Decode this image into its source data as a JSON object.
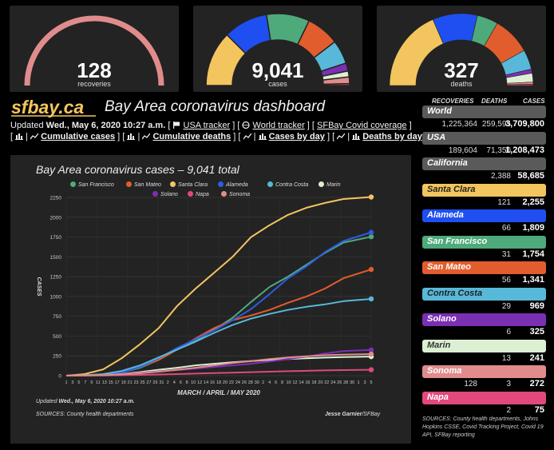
{
  "gauges": [
    {
      "value": "128",
      "label": "recoveries"
    },
    {
      "value": "9,041",
      "label": "cases"
    },
    {
      "value": "327",
      "label": "deaths"
    }
  ],
  "header": {
    "logo_text": "sfbay.ca",
    "title": "Bay Area coronavirus dashboard",
    "updated_prefix": "Updated",
    "updated_date": "Wed., May 6, 2020 10:27 a.m.",
    "links": {
      "usa": "USA tracker",
      "world": "World tracker",
      "sfbay": "SFBay Covid coverage",
      "cumulative_cases": "Cumulative cases",
      "cumulative_deaths": "Cumulative deaths",
      "cases_by_day": "Cases by day",
      "deaths_by_day": "Deaths by day"
    }
  },
  "chart_panel": {
    "footer_updated_prefix": "Updated",
    "footer_updated_date": "Wed., May 6, 2020 10:27 a.m.",
    "sources": "SOURCES: County health departments",
    "credit_name": "Jesse Garnier",
    "credit_org": "/SFBay"
  },
  "chart_data": {
    "type": "line",
    "title": "Bay Area coronavirus cases – 9,041 total",
    "xlabel": "MARCH / APRIL / MAY 2020",
    "ylabel": "CASES",
    "ylim": [
      0,
      2250
    ],
    "yticks": [
      0,
      250,
      500,
      750,
      1000,
      1250,
      1500,
      1750,
      2000,
      2250
    ],
    "xtick_labels": [
      "1",
      "3",
      "5",
      "7",
      "9",
      "11",
      "13",
      "15",
      "17",
      "19",
      "21",
      "23",
      "25",
      "27",
      "29",
      "31",
      "2",
      "4",
      "6",
      "8",
      "10",
      "12",
      "14",
      "16",
      "18",
      "20",
      "22",
      "24",
      "26",
      "28",
      "30",
      "2",
      "4",
      "6",
      "8",
      "10",
      "12",
      "14",
      "16",
      "18",
      "20",
      "22",
      "24",
      "26",
      "28",
      "30",
      "1",
      "3",
      "5"
    ],
    "x_days": [
      0,
      4,
      8,
      12,
      16,
      20,
      24,
      28,
      32,
      36,
      40,
      44,
      48,
      52,
      56,
      60,
      66
    ],
    "legend_position": "top",
    "grid": true,
    "series": [
      {
        "name": "San Francisco",
        "color": "#4eaa7b",
        "values": [
          0,
          5,
          15,
          40,
          100,
          200,
          330,
          440,
          580,
          730,
          930,
          1120,
          1250,
          1400,
          1550,
          1680,
          1754
        ]
      },
      {
        "name": "San Mateo",
        "color": "#e25d2d",
        "values": [
          0,
          3,
          10,
          40,
          110,
          200,
          330,
          470,
          600,
          700,
          760,
          830,
          920,
          1000,
          1100,
          1230,
          1341
        ]
      },
      {
        "name": "Santa Clara",
        "color": "#f2c55e",
        "values": [
          0,
          20,
          80,
          220,
          400,
          600,
          880,
          1100,
          1300,
          1500,
          1750,
          1900,
          2030,
          2120,
          2180,
          2230,
          2255
        ]
      },
      {
        "name": "Alameda",
        "color": "#2d5ce6",
        "values": [
          0,
          4,
          12,
          40,
          110,
          220,
          350,
          460,
          570,
          700,
          840,
          1030,
          1230,
          1380,
          1560,
          1700,
          1809
        ]
      },
      {
        "name": "Contra Costa",
        "color": "#58b8d9",
        "values": [
          0,
          5,
          20,
          60,
          130,
          230,
          330,
          430,
          540,
          640,
          720,
          780,
          830,
          870,
          900,
          940,
          969
        ]
      },
      {
        "name": "Marin",
        "color": "#dcefd2",
        "values": [
          0,
          2,
          8,
          20,
          45,
          75,
          100,
          130,
          150,
          170,
          185,
          200,
          210,
          220,
          228,
          235,
          241
        ]
      },
      {
        "name": "Solano",
        "color": "#7b2fb3",
        "values": [
          0,
          3,
          8,
          18,
          35,
          55,
          70,
          90,
          110,
          130,
          150,
          180,
          210,
          240,
          280,
          310,
          325
        ]
      },
      {
        "name": "Napa",
        "color": "#e0497a",
        "values": [
          0,
          1,
          3,
          6,
          10,
          15,
          20,
          26,
          32,
          38,
          44,
          50,
          56,
          62,
          67,
          71,
          75
        ]
      },
      {
        "name": "Sonoma",
        "color": "#e08c8c",
        "values": [
          0,
          2,
          6,
          15,
          30,
          50,
          75,
          100,
          130,
          160,
          185,
          210,
          230,
          245,
          258,
          266,
          272
        ]
      }
    ]
  },
  "table": {
    "headers": {
      "recoveries": "RECOVERIES",
      "deaths": "DEATHS",
      "cases": "CASES"
    },
    "rows": [
      {
        "name": "World",
        "recoveries": "1,225,364",
        "deaths": "259,595",
        "cases": "3,709,800",
        "bg": "#5a5a5a",
        "fg": "#ffffff"
      },
      {
        "name": "USA",
        "recoveries": "189,604",
        "deaths": "71,350",
        "cases": "1,208,473",
        "bg": "#5a5a5a",
        "fg": "#ffffff"
      },
      {
        "name": "California",
        "recoveries": "",
        "deaths": "2,388",
        "cases": "58,685",
        "bg": "#5a5a5a",
        "fg": "#ffffff"
      },
      {
        "name": "Santa Clara",
        "recoveries": "",
        "deaths": "121",
        "cases": "2,255",
        "bg": "#f2c55e",
        "fg": "#222222"
      },
      {
        "name": "Alameda",
        "recoveries": "",
        "deaths": "66",
        "cases": "1,809",
        "bg": "#1f4ff0",
        "fg": "#ffffff"
      },
      {
        "name": "San Francisco",
        "recoveries": "",
        "deaths": "31",
        "cases": "1,754",
        "bg": "#4eaa7b",
        "fg": "#ffffff"
      },
      {
        "name": "San Mateo",
        "recoveries": "",
        "deaths": "56",
        "cases": "1,341",
        "bg": "#e25d2d",
        "fg": "#ffffff"
      },
      {
        "name": "Contra Costa",
        "recoveries": "",
        "deaths": "29",
        "cases": "969",
        "bg": "#58b8d9",
        "fg": "#222222"
      },
      {
        "name": "Solano",
        "recoveries": "",
        "deaths": "6",
        "cases": "325",
        "bg": "#7b2fb3",
        "fg": "#ffffff"
      },
      {
        "name": "Marin",
        "recoveries": "",
        "deaths": "13",
        "cases": "241",
        "bg": "#dcefd2",
        "fg": "#333333"
      },
      {
        "name": "Sonoma",
        "recoveries": "128",
        "deaths": "3",
        "cases": "272",
        "bg": "#e08c8c",
        "fg": "#ffffff"
      },
      {
        "name": "Napa",
        "recoveries": "",
        "deaths": "2",
        "cases": "75",
        "bg": "#e0497a",
        "fg": "#ffffff"
      }
    ],
    "sources": "SOURCES: County health departments, Johns Hopkins CSSE, Covid Tracking Project, Covid 19 API, SFBay reporting"
  }
}
